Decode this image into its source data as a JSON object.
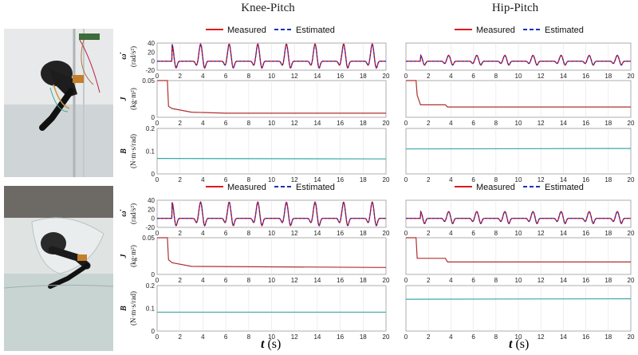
{
  "columns": [
    "Knee-Pitch",
    "Hip-Pitch"
  ],
  "x_label": {
    "var": "t",
    "unit": "(s)"
  },
  "ylabels": {
    "acc": {
      "sym": "ω̇",
      "unit": "(rad/s²)"
    },
    "J": {
      "sym": "J",
      "unit": "(kg·m²)"
    },
    "B": {
      "sym": "B",
      "unit": "(N·m·s/rad)"
    }
  },
  "colors": {
    "measured": "#e0191b",
    "estimated": "#1f2fb8",
    "J_line": "#b03030",
    "B_line": "#3aa8a8"
  },
  "chart_data": [
    {
      "id": "knee-top",
      "type": "line",
      "column": "Knee-Pitch",
      "legend": [
        "Measured",
        "Estimated"
      ],
      "x": {
        "range": [
          0,
          20
        ],
        "ticks": [
          0,
          2,
          4,
          6,
          8,
          10,
          12,
          14,
          16,
          18,
          20
        ]
      },
      "acc": {
        "ylim": [
          -20,
          40
        ],
        "yticks": [
          40,
          20,
          0,
          -20
        ],
        "period": 2.5,
        "t0": 1.3,
        "amp": 38,
        "neg": 16
      },
      "J": {
        "ylim": [
          0,
          0.05
        ],
        "yticks": [
          "0.05",
          "0"
        ],
        "points": [
          [
            0,
            0.05
          ],
          [
            0.9,
            0.05
          ],
          [
            1.0,
            0.015
          ],
          [
            1.3,
            0.012
          ],
          [
            3,
            0.007
          ],
          [
            6,
            0.0055
          ],
          [
            20,
            0.0055
          ]
        ]
      },
      "B": {
        "ylim": [
          0,
          0.2
        ],
        "yticks": [
          "0.2",
          "0.1",
          "0"
        ],
        "points": [
          [
            0,
            0.068
          ],
          [
            20,
            0.066
          ]
        ]
      }
    },
    {
      "id": "hip-top",
      "type": "line",
      "column": "Hip-Pitch",
      "legend": [
        "Measured",
        "Estimated"
      ],
      "x": {
        "range": [
          0,
          20
        ],
        "ticks": [
          0,
          2,
          4,
          6,
          8,
          10,
          12,
          14,
          16,
          18,
          20
        ]
      },
      "acc": {
        "ylim": [
          -20,
          40
        ],
        "yticks": [],
        "period": 2.5,
        "t0": 1.3,
        "amp": 13,
        "neg": 9
      },
      "J": {
        "ylim": [
          0,
          0.05
        ],
        "yticks": [],
        "points": [
          [
            0,
            0.05
          ],
          [
            0.9,
            0.05
          ],
          [
            1.0,
            0.03
          ],
          [
            1.3,
            0.017
          ],
          [
            3.5,
            0.017
          ],
          [
            3.7,
            0.014
          ],
          [
            20,
            0.014
          ]
        ]
      },
      "B": {
        "ylim": [
          0,
          0.2
        ],
        "yticks": [],
        "points": [
          [
            0,
            0.11
          ],
          [
            20,
            0.112
          ]
        ]
      }
    },
    {
      "id": "knee-bottom",
      "type": "line",
      "column": "Knee-Pitch",
      "legend": [
        "Measured",
        "Estimated"
      ],
      "x": {
        "range": [
          0,
          20
        ],
        "ticks": [
          0,
          2,
          4,
          6,
          8,
          10,
          12,
          14,
          16,
          18,
          20
        ]
      },
      "acc": {
        "ylim": [
          -20,
          40
        ],
        "yticks": [
          40,
          20,
          0,
          -20
        ],
        "period": 2.5,
        "t0": 1.3,
        "amp": 36,
        "neg": 17
      },
      "J": {
        "ylim": [
          0,
          0.05
        ],
        "yticks": [
          "0.05",
          "0"
        ],
        "points": [
          [
            0,
            0.05
          ],
          [
            0.9,
            0.05
          ],
          [
            1.0,
            0.02
          ],
          [
            1.3,
            0.016
          ],
          [
            3,
            0.011
          ],
          [
            20,
            0.0095
          ]
        ]
      },
      "B": {
        "ylim": [
          0,
          0.2
        ],
        "yticks": [
          "0.2",
          "0.1",
          "0"
        ],
        "points": [
          [
            0,
            0.083
          ],
          [
            20,
            0.083
          ]
        ]
      }
    },
    {
      "id": "hip-bottom",
      "type": "line",
      "column": "Hip-Pitch",
      "legend": [
        "Measured",
        "Estimated"
      ],
      "x": {
        "range": [
          0,
          20
        ],
        "ticks": [
          0,
          2,
          4,
          6,
          8,
          10,
          12,
          14,
          16,
          18,
          20
        ]
      },
      "acc": {
        "ylim": [
          -20,
          40
        ],
        "yticks": [],
        "period": 2.5,
        "t0": 1.3,
        "amp": 15,
        "neg": 12
      },
      "J": {
        "ylim": [
          0,
          0.05
        ],
        "yticks": [],
        "points": [
          [
            0,
            0.05
          ],
          [
            0.9,
            0.05
          ],
          [
            1.0,
            0.022
          ],
          [
            3.5,
            0.022
          ],
          [
            3.7,
            0.017
          ],
          [
            20,
            0.017
          ]
        ]
      },
      "B": {
        "ylim": [
          0,
          0.2
        ],
        "yticks": [],
        "points": [
          [
            0,
            0.14
          ],
          [
            20,
            0.142
          ]
        ]
      }
    }
  ]
}
